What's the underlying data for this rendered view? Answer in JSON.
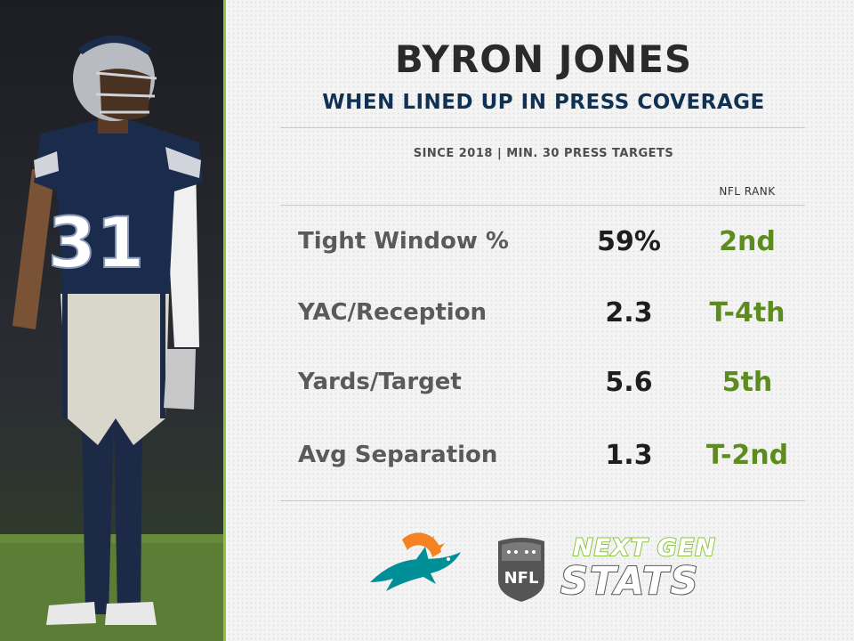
{
  "header": {
    "player_name": "BYRON JONES",
    "subtitle": "WHEN LINED UP IN PRESS COVERAGE",
    "note": "SINCE 2018 | MIN. 30 PRESS TARGETS"
  },
  "photo": {
    "jersey_number": "31"
  },
  "table": {
    "rank_header": "NFL RANK",
    "rows": [
      {
        "label": "Tight Window %",
        "value": "59%",
        "rank": "2nd"
      },
      {
        "label": "YAC/Reception",
        "value": "2.3",
        "rank": "T-4th"
      },
      {
        "label": "Yards/Target",
        "value": "5.6",
        "rank": "5th"
      },
      {
        "label": "Avg Separation",
        "value": "1.3",
        "rank": "T-2nd"
      }
    ]
  },
  "logos": {
    "team_logo": "miami-dolphins-logo",
    "league_logo": "nfl-shield-logo",
    "league_logo_text": "NFL",
    "brand_line1": "NEXT GEN",
    "brand_line2": "STATS"
  },
  "colors": {
    "accent_green": "#8cc63f",
    "rank_green": "#5d8c1e",
    "subtitle_navy": "#0f3254",
    "dolphins_aqua": "#008e97",
    "dolphins_orange": "#f58220"
  }
}
